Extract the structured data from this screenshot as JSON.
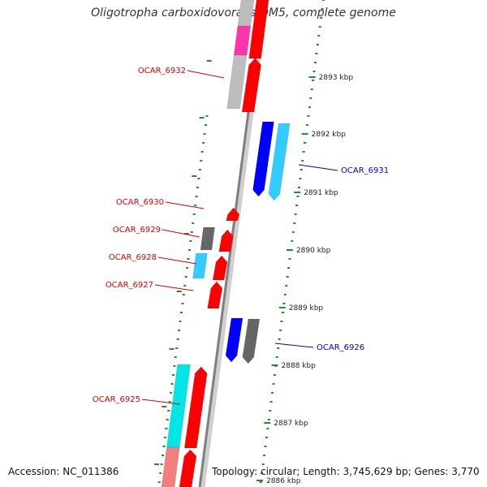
{
  "title": "Oligotropha carboxidovorans OM5, complete genome",
  "accession": "Accession: NC_011386",
  "summary": "Topology: circular; Length: 3,745,629 bp; Genes: 3,770",
  "colors": {
    "backbone_dark": "#7f7f7f",
    "backbone_light": "#cfcfcf",
    "tick": "#2a8a2a",
    "label_red": "#dd0000",
    "label_blue": "#0000cc",
    "gene_red": "#ff0000",
    "gene_blue": "#0000ff",
    "gene_cyan": "#33ccff",
    "gene_cyan2": "#00e5e5",
    "gene_gray": "#666666",
    "gene_lightgray": "#bdbdbd",
    "gene_magenta": "#ff33aa",
    "gene_pink": "#f08080"
  },
  "scale_labels": [
    {
      "text": "2893 kbp",
      "kbp": 2893
    },
    {
      "text": "2892 kbp",
      "kbp": 2892
    },
    {
      "text": "2891 kbp",
      "kbp": 2891
    },
    {
      "text": "2890 kbp",
      "kbp": 2890
    },
    {
      "text": "2889 kbp",
      "kbp": 2889
    },
    {
      "text": "2888 kbp",
      "kbp": 2888
    },
    {
      "text": "2887 kbp",
      "kbp": 2887
    },
    {
      "text": "2886 kbp",
      "kbp": 2886
    }
  ],
  "gene_labels": [
    {
      "text": "OCAR_6932",
      "strand": "forward"
    },
    {
      "text": "OCAR_6931",
      "strand": "reverse"
    },
    {
      "text": "OCAR_6930",
      "strand": "forward"
    },
    {
      "text": "OCAR_6929",
      "strand": "forward"
    },
    {
      "text": "OCAR_6928",
      "strand": "forward"
    },
    {
      "text": "OCAR_6927",
      "strand": "forward"
    },
    {
      "text": "OCAR_6926",
      "strand": "reverse"
    },
    {
      "text": "OCAR_6925",
      "strand": "forward"
    }
  ]
}
